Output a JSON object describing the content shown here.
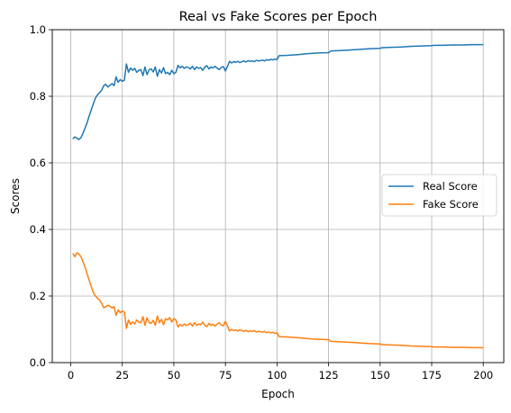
{
  "chart_data": {
    "type": "line",
    "title": "Real vs Fake Scores per Epoch",
    "xlabel": "Epoch",
    "ylabel": "Scores",
    "xlim": [
      -8.95,
      209.95
    ],
    "ylim": [
      0,
      1
    ],
    "xticks": [
      0,
      25,
      50,
      75,
      100,
      125,
      150,
      175,
      200
    ],
    "yticks": [
      0.0,
      0.2,
      0.4,
      0.6,
      0.8,
      1.0
    ],
    "xtick_labels": [
      "0",
      "25",
      "50",
      "75",
      "100",
      "125",
      "150",
      "175",
      "200"
    ],
    "ytick_labels": [
      "0.0",
      "0.2",
      "0.4",
      "0.6",
      "0.8",
      "1.0"
    ],
    "grid": true,
    "legend_position": "center-right",
    "series": [
      {
        "name": "Real Score",
        "color": "#1f77b4",
        "points": [
          [
            1,
            0.672
          ],
          [
            2,
            0.678
          ],
          [
            3,
            0.674
          ],
          [
            4,
            0.67
          ],
          [
            5,
            0.676
          ],
          [
            6,
            0.69
          ],
          [
            7,
            0.705
          ],
          [
            8,
            0.722
          ],
          [
            9,
            0.742
          ],
          [
            10,
            0.76
          ],
          [
            11,
            0.778
          ],
          [
            12,
            0.795
          ],
          [
            13,
            0.805
          ],
          [
            14,
            0.811
          ],
          [
            15,
            0.818
          ],
          [
            16,
            0.832
          ],
          [
            17,
            0.836
          ],
          [
            18,
            0.828
          ],
          [
            19,
            0.833
          ],
          [
            20,
            0.838
          ],
          [
            21,
            0.832
          ],
          [
            22,
            0.858
          ],
          [
            23,
            0.842
          ],
          [
            24,
            0.85
          ],
          [
            25,
            0.845
          ],
          [
            26,
            0.848
          ],
          [
            27,
            0.897
          ],
          [
            28,
            0.872
          ],
          [
            29,
            0.885
          ],
          [
            30,
            0.878
          ],
          [
            31,
            0.884
          ],
          [
            32,
            0.872
          ],
          [
            33,
            0.878
          ],
          [
            34,
            0.88
          ],
          [
            35,
            0.862
          ],
          [
            36,
            0.888
          ],
          [
            37,
            0.865
          ],
          [
            38,
            0.88
          ],
          [
            39,
            0.882
          ],
          [
            40,
            0.873
          ],
          [
            41,
            0.888
          ],
          [
            42,
            0.86
          ],
          [
            43,
            0.88
          ],
          [
            44,
            0.87
          ],
          [
            45,
            0.886
          ],
          [
            46,
            0.868
          ],
          [
            47,
            0.872
          ],
          [
            48,
            0.865
          ],
          [
            49,
            0.878
          ],
          [
            50,
            0.868
          ],
          [
            51,
            0.872
          ],
          [
            52,
            0.893
          ],
          [
            53,
            0.885
          ],
          [
            54,
            0.89
          ],
          [
            55,
            0.884
          ],
          [
            56,
            0.888
          ],
          [
            57,
            0.886
          ],
          [
            58,
            0.882
          ],
          [
            59,
            0.89
          ],
          [
            60,
            0.88
          ],
          [
            61,
            0.888
          ],
          [
            62,
            0.884
          ],
          [
            63,
            0.886
          ],
          [
            64,
            0.878
          ],
          [
            65,
            0.888
          ],
          [
            66,
            0.892
          ],
          [
            67,
            0.882
          ],
          [
            68,
            0.888
          ],
          [
            69,
            0.885
          ],
          [
            70,
            0.89
          ],
          [
            71,
            0.884
          ],
          [
            72,
            0.88
          ],
          [
            73,
            0.887
          ],
          [
            74,
            0.889
          ],
          [
            75,
            0.876
          ],
          [
            76,
            0.89
          ],
          [
            77,
            0.905
          ],
          [
            78,
            0.9
          ],
          [
            79,
            0.904
          ],
          [
            80,
            0.902
          ],
          [
            81,
            0.905
          ],
          [
            82,
            0.901
          ],
          [
            83,
            0.904
          ],
          [
            84,
            0.906
          ],
          [
            85,
            0.903
          ],
          [
            86,
            0.907
          ],
          [
            87,
            0.905
          ],
          [
            88,
            0.906
          ],
          [
            89,
            0.904
          ],
          [
            90,
            0.908
          ],
          [
            91,
            0.906
          ],
          [
            92,
            0.907
          ],
          [
            93,
            0.909
          ],
          [
            94,
            0.906
          ],
          [
            95,
            0.91
          ],
          [
            96,
            0.908
          ],
          [
            97,
            0.911
          ],
          [
            98,
            0.909
          ],
          [
            99,
            0.912
          ],
          [
            100,
            0.91
          ],
          [
            101,
            0.922
          ],
          [
            105,
            0.923
          ],
          [
            110,
            0.925
          ],
          [
            115,
            0.928
          ],
          [
            120,
            0.93
          ],
          [
            125,
            0.931
          ],
          [
            126,
            0.936
          ],
          [
            130,
            0.937
          ],
          [
            135,
            0.939
          ],
          [
            140,
            0.941
          ],
          [
            145,
            0.943
          ],
          [
            150,
            0.944
          ],
          [
            151,
            0.946
          ],
          [
            155,
            0.947
          ],
          [
            160,
            0.948
          ],
          [
            165,
            0.95
          ],
          [
            170,
            0.951
          ],
          [
            175,
            0.952
          ],
          [
            176,
            0.953
          ],
          [
            180,
            0.953
          ],
          [
            185,
            0.954
          ],
          [
            190,
            0.954
          ],
          [
            195,
            0.955
          ],
          [
            200,
            0.955
          ]
        ]
      },
      {
        "name": "Fake Score",
        "color": "#ff7f0e",
        "points": [
          [
            1,
            0.328
          ],
          [
            2,
            0.318
          ],
          [
            3,
            0.33
          ],
          [
            4,
            0.326
          ],
          [
            5,
            0.318
          ],
          [
            6,
            0.302
          ],
          [
            7,
            0.285
          ],
          [
            8,
            0.266
          ],
          [
            9,
            0.246
          ],
          [
            10,
            0.228
          ],
          [
            11,
            0.21
          ],
          [
            12,
            0.2
          ],
          [
            13,
            0.193
          ],
          [
            14,
            0.188
          ],
          [
            15,
            0.178
          ],
          [
            16,
            0.165
          ],
          [
            17,
            0.168
          ],
          [
            18,
            0.172
          ],
          [
            19,
            0.17
          ],
          [
            20,
            0.164
          ],
          [
            21,
            0.168
          ],
          [
            22,
            0.142
          ],
          [
            23,
            0.158
          ],
          [
            24,
            0.15
          ],
          [
            25,
            0.155
          ],
          [
            26,
            0.152
          ],
          [
            27,
            0.103
          ],
          [
            28,
            0.128
          ],
          [
            29,
            0.115
          ],
          [
            30,
            0.122
          ],
          [
            31,
            0.116
          ],
          [
            32,
            0.128
          ],
          [
            33,
            0.122
          ],
          [
            34,
            0.12
          ],
          [
            35,
            0.138
          ],
          [
            36,
            0.112
          ],
          [
            37,
            0.135
          ],
          [
            38,
            0.12
          ],
          [
            39,
            0.118
          ],
          [
            40,
            0.127
          ],
          [
            41,
            0.112
          ],
          [
            42,
            0.14
          ],
          [
            43,
            0.12
          ],
          [
            44,
            0.13
          ],
          [
            45,
            0.114
          ],
          [
            46,
            0.132
          ],
          [
            47,
            0.128
          ],
          [
            48,
            0.135
          ],
          [
            49,
            0.122
          ],
          [
            50,
            0.132
          ],
          [
            51,
            0.128
          ],
          [
            52,
            0.107
          ],
          [
            53,
            0.115
          ],
          [
            54,
            0.11
          ],
          [
            55,
            0.116
          ],
          [
            56,
            0.112
          ],
          [
            57,
            0.114
          ],
          [
            58,
            0.118
          ],
          [
            59,
            0.11
          ],
          [
            60,
            0.12
          ],
          [
            61,
            0.112
          ],
          [
            62,
            0.116
          ],
          [
            63,
            0.114
          ],
          [
            64,
            0.122
          ],
          [
            65,
            0.112
          ],
          [
            66,
            0.108
          ],
          [
            67,
            0.118
          ],
          [
            68,
            0.112
          ],
          [
            69,
            0.115
          ],
          [
            70,
            0.11
          ],
          [
            71,
            0.116
          ],
          [
            72,
            0.12
          ],
          [
            73,
            0.113
          ],
          [
            74,
            0.111
          ],
          [
            75,
            0.124
          ],
          [
            76,
            0.11
          ],
          [
            77,
            0.095
          ],
          [
            78,
            0.1
          ],
          [
            79,
            0.096
          ],
          [
            80,
            0.098
          ],
          [
            81,
            0.095
          ],
          [
            82,
            0.099
          ],
          [
            83,
            0.096
          ],
          [
            84,
            0.094
          ],
          [
            85,
            0.097
          ],
          [
            86,
            0.093
          ],
          [
            87,
            0.095
          ],
          [
            88,
            0.094
          ],
          [
            89,
            0.096
          ],
          [
            90,
            0.092
          ],
          [
            91,
            0.094
          ],
          [
            92,
            0.093
          ],
          [
            93,
            0.091
          ],
          [
            94,
            0.094
          ],
          [
            95,
            0.09
          ],
          [
            96,
            0.092
          ],
          [
            97,
            0.089
          ],
          [
            98,
            0.091
          ],
          [
            99,
            0.088
          ],
          [
            100,
            0.09
          ],
          [
            101,
            0.078
          ],
          [
            105,
            0.077
          ],
          [
            110,
            0.075
          ],
          [
            115,
            0.072
          ],
          [
            120,
            0.07
          ],
          [
            125,
            0.069
          ],
          [
            126,
            0.064
          ],
          [
            130,
            0.063
          ],
          [
            135,
            0.061
          ],
          [
            140,
            0.059
          ],
          [
            145,
            0.057
          ],
          [
            150,
            0.056
          ],
          [
            151,
            0.054
          ],
          [
            155,
            0.053
          ],
          [
            160,
            0.052
          ],
          [
            165,
            0.05
          ],
          [
            170,
            0.049
          ],
          [
            175,
            0.048
          ],
          [
            176,
            0.047
          ],
          [
            180,
            0.047
          ],
          [
            185,
            0.046
          ],
          [
            190,
            0.046
          ],
          [
            195,
            0.045
          ],
          [
            200,
            0.045
          ]
        ]
      }
    ]
  }
}
